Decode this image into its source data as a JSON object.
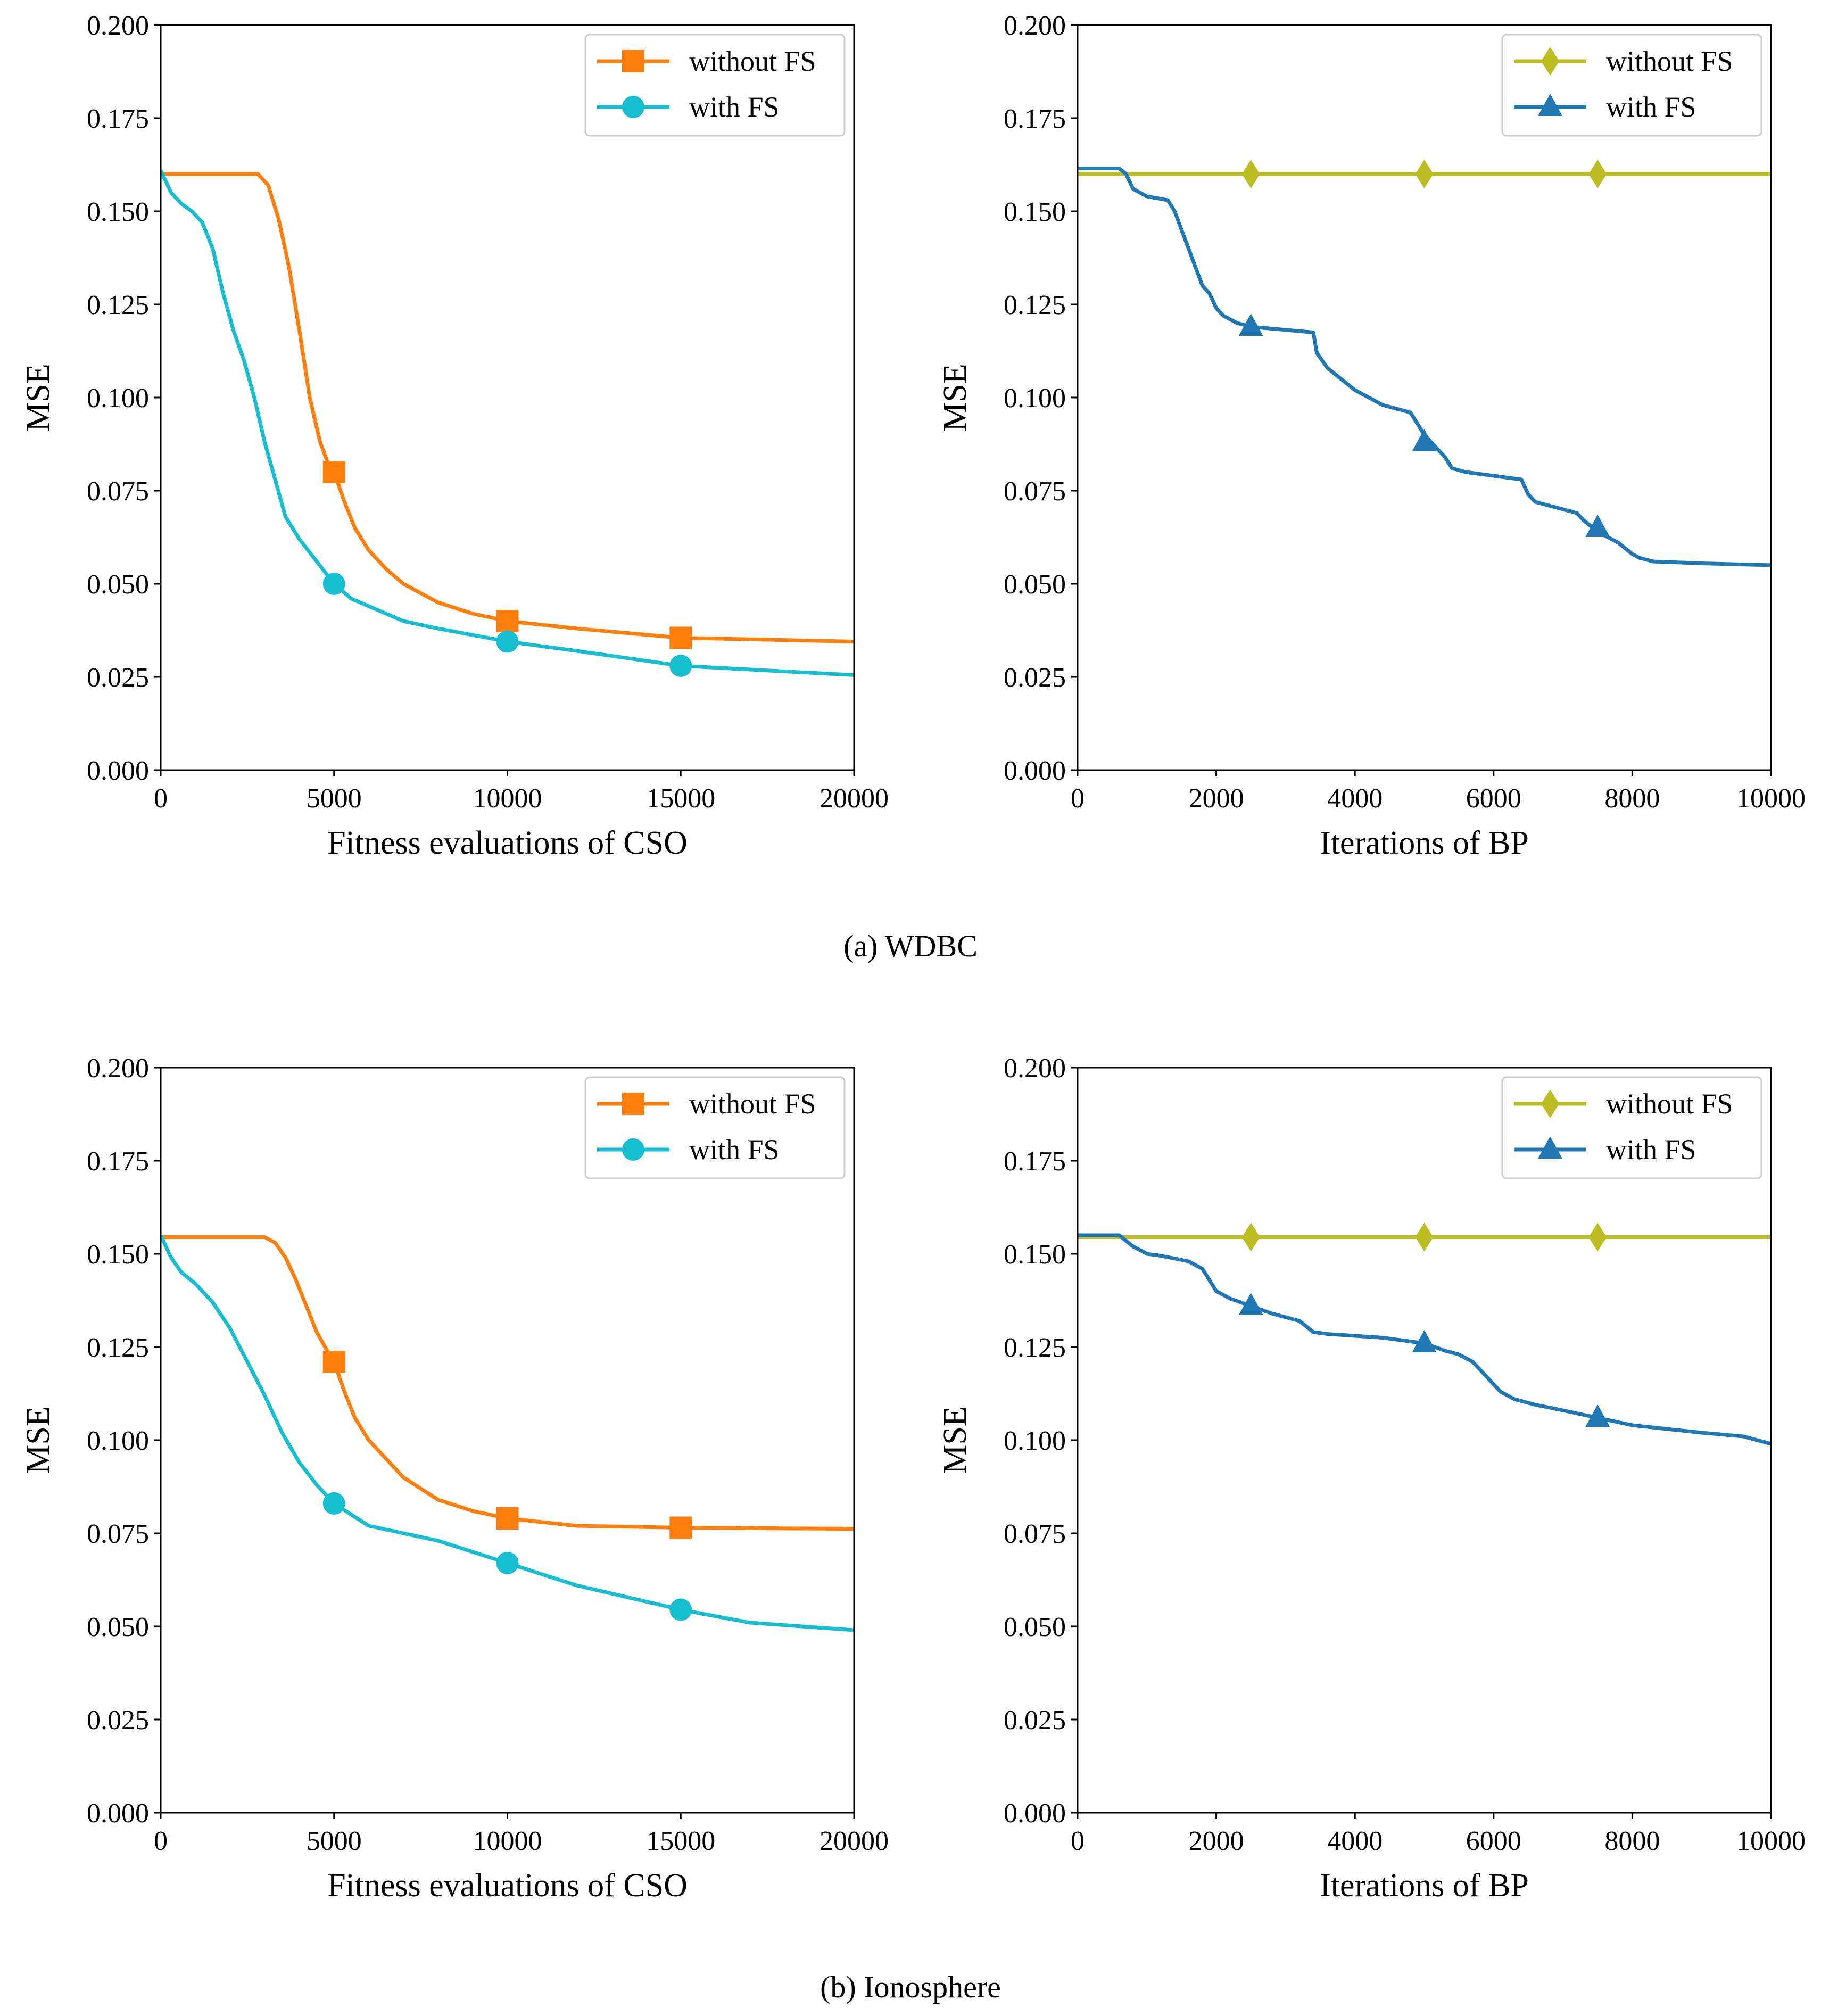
{
  "figure": {
    "caption_a": "(a)  WDBC",
    "caption_b": "(b)  Ionosphere"
  },
  "chart_data": [
    {
      "id": "wdbc-cso",
      "type": "line",
      "xlabel": "Fitness evaluations of CSO",
      "ylabel": "MSE",
      "xlim": [
        0,
        20000
      ],
      "ylim": [
        0,
        0.2
      ],
      "xticks": [
        0,
        5000,
        10000,
        15000,
        20000
      ],
      "xtick_labels": [
        "0",
        "5000",
        "10000",
        "15000",
        "20000"
      ],
      "yticks": [
        0,
        0.025,
        0.05,
        0.075,
        0.1,
        0.125,
        0.15,
        0.175,
        0.2
      ],
      "ytick_labels": [
        "0.000",
        "0.025",
        "0.050",
        "0.075",
        "0.100",
        "0.125",
        "0.150",
        "0.175",
        "0.200"
      ],
      "legend_position": "top-right",
      "series": [
        {
          "name": "without FS",
          "color": "#ff7f0e",
          "marker": "square",
          "x": [
            0,
            2800,
            3100,
            3400,
            3700,
            4000,
            4300,
            4600,
            4800,
            5000,
            5300,
            5600,
            6000,
            6500,
            7000,
            8000,
            9000,
            10000,
            12000,
            15000,
            20000
          ],
          "y": [
            0.16,
            0.16,
            0.157,
            0.148,
            0.135,
            0.118,
            0.1,
            0.088,
            0.083,
            0.08,
            0.072,
            0.065,
            0.059,
            0.054,
            0.05,
            0.045,
            0.042,
            0.04,
            0.038,
            0.0355,
            0.0345
          ],
          "marker_x": [
            5000,
            10000,
            15000
          ],
          "marker_y": [
            0.08,
            0.04,
            0.0355
          ]
        },
        {
          "name": "with FS",
          "color": "#17becf",
          "marker": "circle",
          "x": [
            0,
            300,
            600,
            900,
            1200,
            1500,
            1800,
            2100,
            2400,
            2700,
            3000,
            3300,
            3600,
            4000,
            4500,
            5000,
            5500,
            6000,
            7000,
            8000,
            10000,
            12000,
            15000,
            20000
          ],
          "y": [
            0.161,
            0.155,
            0.152,
            0.15,
            0.147,
            0.14,
            0.128,
            0.118,
            0.11,
            0.1,
            0.088,
            0.078,
            0.068,
            0.062,
            0.056,
            0.05,
            0.046,
            0.044,
            0.04,
            0.038,
            0.0345,
            0.032,
            0.028,
            0.0255
          ],
          "marker_x": [
            5000,
            10000,
            15000
          ],
          "marker_y": [
            0.05,
            0.0345,
            0.028
          ]
        }
      ]
    },
    {
      "id": "wdbc-bp",
      "type": "line",
      "xlabel": "Iterations of BP",
      "ylabel": "MSE",
      "xlim": [
        0,
        10000
      ],
      "ylim": [
        0,
        0.2
      ],
      "xticks": [
        0,
        2000,
        4000,
        6000,
        8000,
        10000
      ],
      "xtick_labels": [
        "0",
        "2000",
        "4000",
        "6000",
        "8000",
        "10000"
      ],
      "yticks": [
        0,
        0.025,
        0.05,
        0.075,
        0.1,
        0.125,
        0.15,
        0.175,
        0.2
      ],
      "ytick_labels": [
        "0.000",
        "0.025",
        "0.050",
        "0.075",
        "0.100",
        "0.125",
        "0.150",
        "0.175",
        "0.200"
      ],
      "legend_position": "top-right",
      "series": [
        {
          "name": "without FS",
          "color": "#bcbd22",
          "marker": "diamond",
          "x": [
            0,
            10000
          ],
          "y": [
            0.16,
            0.16
          ],
          "marker_x": [
            2500,
            5000,
            7500
          ],
          "marker_y": [
            0.16,
            0.16,
            0.16
          ]
        },
        {
          "name": "with FS",
          "color": "#1f77b4",
          "marker": "triangle",
          "x": [
            0,
            600,
            700,
            800,
            1000,
            1300,
            1400,
            1500,
            1600,
            1700,
            1800,
            1900,
            2000,
            2100,
            2200,
            2300,
            2500,
            2800,
            3100,
            3400,
            3450,
            3600,
            3800,
            4000,
            4200,
            4400,
            4600,
            4800,
            4900,
            5000,
            5100,
            5200,
            5300,
            5400,
            5600,
            6000,
            6400,
            6500,
            6600,
            7000,
            7200,
            7300,
            7500,
            7800,
            8000,
            8100,
            8300,
            9000,
            10000
          ],
          "y": [
            0.1615,
            0.1615,
            0.16,
            0.156,
            0.154,
            0.153,
            0.15,
            0.145,
            0.14,
            0.135,
            0.13,
            0.128,
            0.124,
            0.122,
            0.121,
            0.12,
            0.119,
            0.1185,
            0.118,
            0.1175,
            0.112,
            0.108,
            0.105,
            0.102,
            0.1,
            0.098,
            0.097,
            0.096,
            0.093,
            0.09,
            0.088,
            0.086,
            0.084,
            0.081,
            0.08,
            0.079,
            0.078,
            0.074,
            0.072,
            0.07,
            0.069,
            0.067,
            0.064,
            0.061,
            0.058,
            0.057,
            0.056,
            0.0555,
            0.055
          ],
          "marker_x": [
            2500,
            5000,
            7500
          ],
          "marker_y": [
            0.119,
            0.088,
            0.065
          ]
        }
      ]
    },
    {
      "id": "iono-cso",
      "type": "line",
      "xlabel": "Fitness evaluations of CSO",
      "ylabel": "MSE",
      "xlim": [
        0,
        20000
      ],
      "ylim": [
        0,
        0.2
      ],
      "xticks": [
        0,
        5000,
        10000,
        15000,
        20000
      ],
      "xtick_labels": [
        "0",
        "5000",
        "10000",
        "15000",
        "20000"
      ],
      "yticks": [
        0,
        0.025,
        0.05,
        0.075,
        0.1,
        0.125,
        0.15,
        0.175,
        0.2
      ],
      "ytick_labels": [
        "0.000",
        "0.025",
        "0.050",
        "0.075",
        "0.100",
        "0.125",
        "0.150",
        "0.175",
        "0.200"
      ],
      "legend_position": "top-right",
      "series": [
        {
          "name": "without FS",
          "color": "#ff7f0e",
          "marker": "square",
          "x": [
            0,
            3000,
            3300,
            3600,
            3900,
            4200,
            4500,
            4800,
            5000,
            5300,
            5600,
            6000,
            6500,
            7000,
            7500,
            8000,
            9000,
            10000,
            12000,
            15000,
            20000
          ],
          "y": [
            0.1545,
            0.1545,
            0.153,
            0.149,
            0.143,
            0.136,
            0.129,
            0.124,
            0.121,
            0.113,
            0.106,
            0.1,
            0.095,
            0.09,
            0.087,
            0.084,
            0.081,
            0.079,
            0.077,
            0.0765,
            0.0762
          ],
          "marker_x": [
            5000,
            10000,
            15000
          ],
          "marker_y": [
            0.121,
            0.079,
            0.0765
          ]
        },
        {
          "name": "with FS",
          "color": "#17becf",
          "marker": "circle",
          "x": [
            0,
            300,
            600,
            1000,
            1500,
            2000,
            2500,
            3000,
            3500,
            4000,
            4500,
            5000,
            5500,
            6000,
            7000,
            8000,
            9000,
            10000,
            12000,
            15000,
            17000,
            20000
          ],
          "y": [
            0.155,
            0.149,
            0.145,
            0.142,
            0.137,
            0.13,
            0.121,
            0.112,
            0.102,
            0.094,
            0.088,
            0.083,
            0.08,
            0.077,
            0.075,
            0.073,
            0.07,
            0.067,
            0.061,
            0.0545,
            0.051,
            0.049
          ],
          "marker_x": [
            5000,
            10000,
            15000
          ],
          "marker_y": [
            0.083,
            0.067,
            0.0545
          ]
        }
      ]
    },
    {
      "id": "iono-bp",
      "type": "line",
      "xlabel": "Iterations of BP",
      "ylabel": "MSE",
      "xlim": [
        0,
        10000
      ],
      "ylim": [
        0,
        0.2
      ],
      "xticks": [
        0,
        2000,
        4000,
        6000,
        8000,
        10000
      ],
      "xtick_labels": [
        "0",
        "2000",
        "4000",
        "6000",
        "8000",
        "10000"
      ],
      "yticks": [
        0,
        0.025,
        0.05,
        0.075,
        0.1,
        0.125,
        0.15,
        0.175,
        0.2
      ],
      "ytick_labels": [
        "0.000",
        "0.025",
        "0.050",
        "0.075",
        "0.100",
        "0.125",
        "0.150",
        "0.175",
        "0.200"
      ],
      "legend_position": "top-right",
      "series": [
        {
          "name": "without FS",
          "color": "#bcbd22",
          "marker": "diamond",
          "x": [
            0,
            10000
          ],
          "y": [
            0.1545,
            0.1545
          ],
          "marker_x": [
            2500,
            5000,
            7500
          ],
          "marker_y": [
            0.1545,
            0.1545,
            0.1545
          ]
        },
        {
          "name": "with FS",
          "color": "#1f77b4",
          "marker": "triangle",
          "x": [
            0,
            600,
            800,
            1000,
            1200,
            1600,
            1800,
            1900,
            2000,
            2200,
            2500,
            2800,
            3200,
            3400,
            3600,
            4000,
            4400,
            4800,
            5000,
            5300,
            5500,
            5700,
            5900,
            6100,
            6300,
            6600,
            7000,
            7500,
            8000,
            8500,
            9000,
            9600,
            10000
          ],
          "y": [
            0.155,
            0.155,
            0.152,
            0.15,
            0.1495,
            0.148,
            0.146,
            0.143,
            0.14,
            0.138,
            0.136,
            0.134,
            0.132,
            0.129,
            0.1285,
            0.128,
            0.1275,
            0.1265,
            0.126,
            0.124,
            0.123,
            0.121,
            0.117,
            0.113,
            0.111,
            0.1095,
            0.108,
            0.106,
            0.104,
            0.103,
            0.102,
            0.101,
            0.099
          ],
          "marker_x": [
            2500,
            5000,
            7500
          ],
          "marker_y": [
            0.136,
            0.126,
            0.106
          ]
        }
      ]
    }
  ]
}
